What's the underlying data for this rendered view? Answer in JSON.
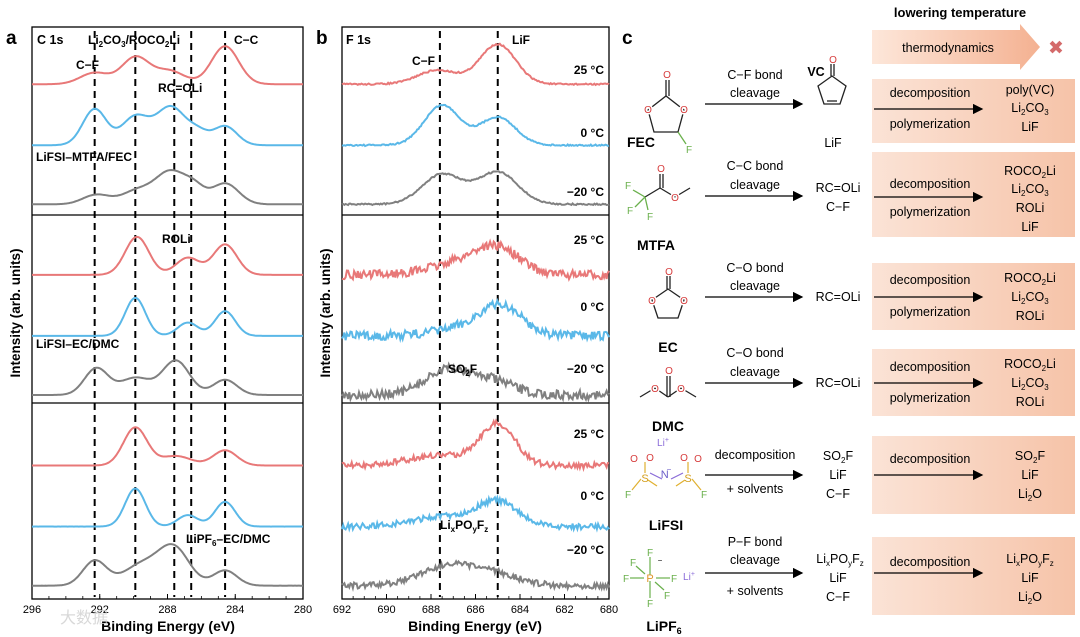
{
  "panel_letters": {
    "a": "a",
    "b": "b",
    "c": "c"
  },
  "chart_data": [
    {
      "type": "line",
      "title": "C 1s",
      "xlabel": "Binding Energy (eV)",
      "ylabel": "Intensity (arb. units)",
      "xlim": [
        296,
        280
      ],
      "xticks": [
        296,
        292,
        288,
        284,
        280
      ],
      "series_names": [
        "25 °C",
        "0 °C",
        "−20 °C"
      ],
      "series_colors": [
        "#e87878",
        "#5ab8e8",
        "#808080"
      ],
      "dashed_positions": [
        292.3,
        289.9,
        287.6,
        286.6,
        284.6
      ],
      "subpanels": [
        {
          "electrolyte": "LiFSI–MTFA/FEC",
          "annotations": [
            "C−F",
            "Li2CO3/ROCO2Li",
            "C−C",
            "RC=OLi"
          ],
          "peaks": [
            [
              [
                292.3,
                0.3,
                0.85
              ],
              [
                289.9,
                0.7,
                0.8
              ],
              [
                287.9,
                0.35,
                0.9
              ],
              [
                284.6,
                1.0,
                0.8
              ]
            ],
            [
              [
                292.3,
                0.95,
                0.7
              ],
              [
                289.9,
                0.75,
                0.8
              ],
              [
                287.8,
                1.0,
                0.85
              ],
              [
                286.2,
                0.3,
                0.6
              ],
              [
                284.6,
                0.5,
                0.7
              ]
            ],
            [
              [
                292.2,
                0.25,
                0.8
              ],
              [
                289.8,
                0.35,
                0.9
              ],
              [
                287.8,
                0.85,
                0.9
              ],
              [
                286.4,
                0.35,
                0.6
              ],
              [
                284.6,
                0.55,
                0.8
              ]
            ]
          ]
        },
        {
          "electrolyte": "LiFSI–EC/DMC",
          "annotations": [
            "ROLi"
          ],
          "peaks": [
            [
              [
                289.8,
                1.0,
                0.7
              ],
              [
                286.8,
                0.45,
                0.7
              ],
              [
                284.6,
                0.8,
                0.7
              ]
            ],
            [
              [
                289.9,
                1.0,
                0.6
              ],
              [
                286.8,
                0.35,
                0.6
              ],
              [
                284.6,
                0.65,
                0.6
              ]
            ],
            [
              [
                292.2,
                0.7,
                0.7
              ],
              [
                289.9,
                0.45,
                0.9
              ],
              [
                287.5,
                0.9,
                0.8
              ],
              [
                284.6,
                0.4,
                0.7
              ]
            ]
          ]
        },
        {
          "electrolyte": "LiPF6–EC/DMC",
          "annotations": [],
          "peaks": [
            [
              [
                289.9,
                1.0,
                0.7
              ],
              [
                287.5,
                0.25,
                0.9
              ],
              [
                284.6,
                0.4,
                0.7
              ]
            ],
            [
              [
                289.9,
                1.0,
                0.6
              ],
              [
                286.8,
                0.3,
                0.6
              ],
              [
                284.6,
                0.65,
                0.6
              ]
            ],
            [
              [
                292.3,
                0.65,
                0.7
              ],
              [
                289.5,
                0.55,
                1.1
              ],
              [
                287.6,
                0.95,
                0.9
              ],
              [
                284.6,
                0.4,
                0.7
              ]
            ]
          ]
        }
      ]
    },
    {
      "type": "line",
      "title": "F 1s",
      "xlabel": "Binding Energy (eV)",
      "ylabel": "Intensity (arb. units)",
      "xlim": [
        692,
        680
      ],
      "xticks": [
        692,
        690,
        688,
        686,
        684,
        682,
        680
      ],
      "series_names": [
        "25 °C",
        "0 °C",
        "−20 °C"
      ],
      "dashed_positions": [
        687.6,
        685.0
      ],
      "subpanels": [
        {
          "annotations": [
            "C−F",
            "LiF"
          ],
          "peaks": [
            [
              [
                687.7,
                0.35,
                0.9
              ],
              [
                685.0,
                1.0,
                0.8
              ]
            ],
            [
              [
                687.5,
                1.0,
                0.8
              ],
              [
                685.0,
                0.7,
                0.8
              ]
            ],
            [
              [
                687.5,
                0.75,
                0.9
              ],
              [
                685.0,
                0.8,
                0.9
              ]
            ]
          ]
        },
        {
          "annotations": [
            "SO2F"
          ],
          "peaks": [
            [
              [
                686.5,
                0.3,
                1.5
              ],
              [
                685.0,
                0.55,
                1.0
              ]
            ],
            [
              [
                686.0,
                0.25,
                1.5
              ],
              [
                684.8,
                0.6,
                0.9
              ]
            ],
            [
              [
                687.3,
                0.6,
                1.0
              ],
              [
                685.3,
                0.35,
                1.0
              ]
            ]
          ]
        },
        {
          "annotations": [
            "LixPOyFz"
          ],
          "peaks": [
            [
              [
                687.6,
                0.25,
                1.4
              ],
              [
                685.0,
                1.0,
                0.8
              ]
            ],
            [
              [
                687.4,
                0.25,
                1.4
              ],
              [
                685.0,
                0.6,
                0.9
              ]
            ],
            [
              [
                687.4,
                0.45,
                1.2
              ],
              [
                685.3,
                0.3,
                1.2
              ]
            ]
          ]
        }
      ]
    }
  ],
  "panel_a": {
    "title": "C 1s",
    "ann": {
      "cf": "C−F",
      "li2co3": "Li",
      "li2co3_sub": "2",
      "co3": "CO",
      "co3_sub": "3",
      "slash": "/ROCO",
      "roco_sub": "2",
      "li": "Li",
      "cc": "C−C",
      "rcoli": "RC=OLi",
      "roli": "ROLi"
    },
    "electrolytes": {
      "e1": "LiFSI–MTFA/FEC",
      "e2": "LiFSI–EC/DMC",
      "e3a": "LiPF",
      "e3sub": "6",
      "e3b": "–EC/DMC"
    }
  },
  "panel_b": {
    "title": "F 1s",
    "ann": {
      "cf": "C−F",
      "lif": "LiF",
      "so2f": "SO",
      "so2f_sub": "2",
      "so2f_f": "F",
      "lix": "Li",
      "x": "x",
      "po": "PO",
      "y": "y",
      "f": "F",
      "z": "z"
    },
    "temps": [
      "25 °C",
      "0 °C",
      "−20 °C"
    ]
  },
  "shared": {
    "ylabel": "Intensity (arb. units)",
    "xlabel": "Binding Energy (eV)",
    "a_ticks": [
      "296",
      "292",
      "288",
      "284",
      "280"
    ],
    "b_ticks": [
      "692",
      "690",
      "688",
      "686",
      "684",
      "682",
      "680"
    ]
  },
  "panel_c": {
    "header": "lowering temperature",
    "arrow": "thermodynamics",
    "x_mark": "✖",
    "molecules": {
      "fec": "FEC",
      "mtfa": "MTFA",
      "ec": "EC",
      "dmc": "DMC",
      "lifsi": "LiFSI",
      "lipf6": "LiPF",
      "lipf6_sub": "6"
    },
    "atoms": {
      "O": "O",
      "F": "F",
      "N": "N",
      "S": "S",
      "P": "P",
      "Li": "Li",
      "plus": "+",
      "minus": "−"
    },
    "rows": [
      {
        "step1_top": "C−F bond",
        "step1_bot": "cleavage",
        "inter1": "VC",
        "inter2": "LiF",
        "step2_top": "decomposition",
        "step2_bot": "polymerization",
        "products": [
          "poly(VC)",
          "Li2CO3",
          "LiF"
        ]
      },
      {
        "step1_top": "C−C bond",
        "step1_bot": "cleavage",
        "inter1": "RC=OLi",
        "inter2": "C−F",
        "step2_top": "decomposition",
        "step2_bot": "polymerization",
        "products": [
          "ROCO2Li",
          "Li2CO3",
          "ROLi",
          "LiF"
        ]
      },
      {
        "step1_top": "C−O bond",
        "step1_bot": "cleavage",
        "inter1": "RC=OLi",
        "step2_top": "decomposition",
        "step2_bot": "polymerization",
        "products": [
          "ROCO2Li",
          "Li2CO3",
          "ROLi"
        ]
      },
      {
        "step1_top": "C−O bond",
        "step1_bot": "cleavage",
        "inter1": "RC=OLi",
        "step2_top": "decomposition",
        "step2_bot": "polymerization",
        "products": [
          "ROCO2Li",
          "Li2CO3",
          "ROLi"
        ]
      },
      {
        "step1_top": "decomposition",
        "step1_bot": "+ solvents",
        "inter": [
          "SO2F",
          "LiF",
          "C−F"
        ],
        "step2_top": "decomposition",
        "products": [
          "SO2F",
          "LiF",
          "Li2O"
        ]
      },
      {
        "step1_top": "P−F bond",
        "step1_bot": "cleavage",
        "step1_bot2": "+ solvents",
        "inter": [
          "LixPOyFz",
          "LiF",
          "C−F"
        ],
        "step2_top": "decomposition",
        "products": [
          "LixPOyFz",
          "LiF",
          "Li2O"
        ]
      }
    ],
    "sub": {
      "two": "2",
      "three": "3",
      "x": "x",
      "y": "y",
      "z": "z",
      "co3": "CO",
      "co": "CO",
      "li": "Li",
      "so": "SO",
      "f": "F",
      "o": "O",
      "po": "PO",
      "roco": "ROCO"
    }
  },
  "watermark": "大数据"
}
